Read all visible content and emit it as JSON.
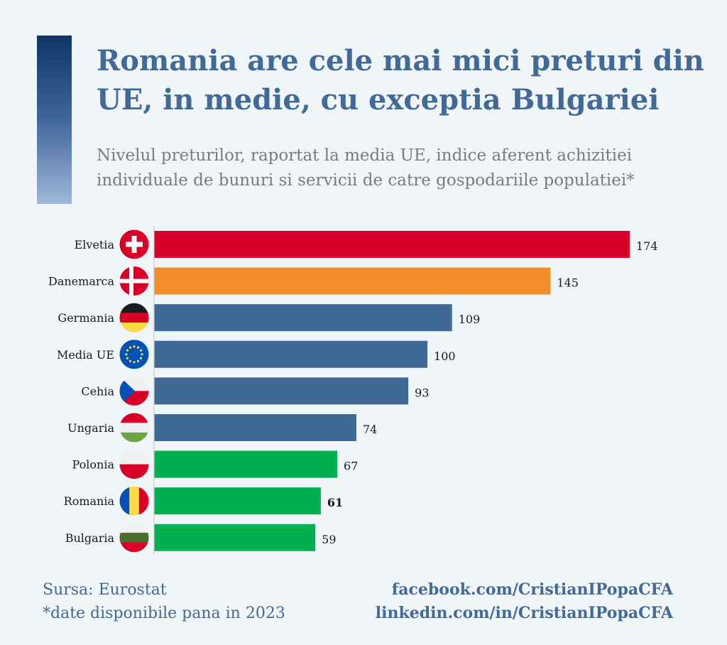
{
  "header": {
    "title": "Romania are cele mai mici preturi din UE, in medie, cu exceptia Bulgariei",
    "subtitle": "Nivelul preturilor, raportat la media UE, indice aferent achizitiei individuale de bunuri si servicii de catre gospodariile populatiei*"
  },
  "chart_data": {
    "type": "bar",
    "orientation": "horizontal",
    "categories": [
      "Elvetia",
      "Danemarca",
      "Germania",
      "Media UE",
      "Cehia",
      "Ungaria",
      "Polonia",
      "Romania",
      "Bulgaria"
    ],
    "values": [
      174,
      145,
      109,
      100,
      93,
      74,
      67,
      61,
      59
    ],
    "bar_colors": [
      "#d7002a",
      "#f28e2b",
      "#406a96",
      "#406a96",
      "#406a96",
      "#406a96",
      "#00b050",
      "#00b050",
      "#00b050"
    ],
    "flag_icons": [
      "swiss-flag-icon",
      "danish-flag-icon",
      "german-flag-icon",
      "eu-flag-icon",
      "czech-flag-icon",
      "hungarian-flag-icon",
      "polish-flag-icon",
      "romanian-flag-icon",
      "bulgarian-flag-icon"
    ],
    "highlight": "Romania",
    "xlim": [
      0,
      174
    ],
    "grid": false,
    "legend": "none"
  },
  "footer": {
    "source": "Sursa: Eurostat",
    "note": "*date disponibile pana in 2023",
    "facebook": "facebook.com/CristianIPopaCFA",
    "linkedin": "linkedin.com/in/CristianIPopaCFA"
  },
  "colors": {
    "title": "#426a98",
    "subtitle": "#7b7b7b",
    "background": "#f0f5f8"
  }
}
